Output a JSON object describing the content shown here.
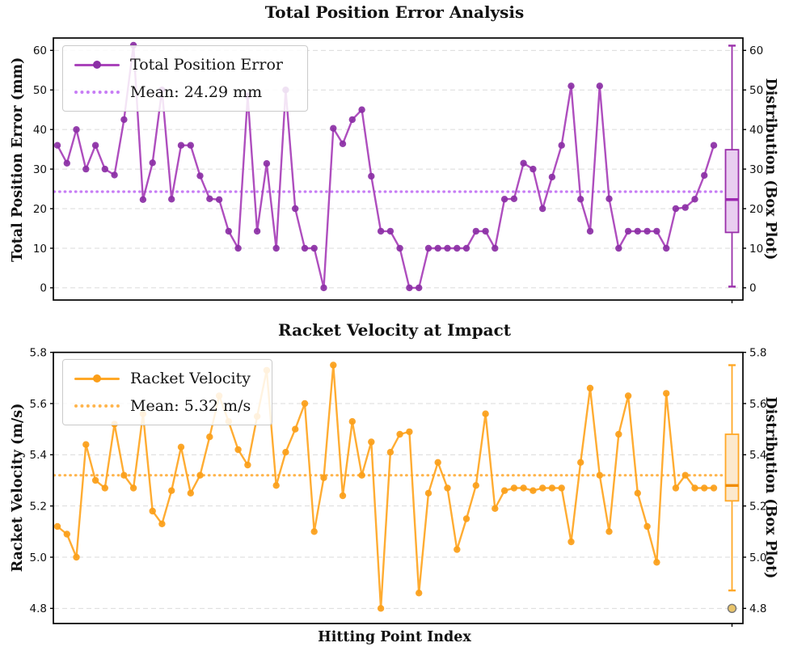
{
  "page": {
    "background": "#ffffff"
  },
  "chart_data": [
    {
      "type": "line",
      "title": "Total Position Error Analysis",
      "ylabel": "Total Position Error (mm)",
      "ylabel_right": "Distribution (Box Plot)",
      "legend": {
        "series_label": "Total Position Error",
        "mean_label": "Mean: 24.29 mm"
      },
      "mean": 24.29,
      "x": "hitting point index 0-69",
      "values": [
        36,
        31.5,
        40,
        30,
        36,
        30,
        28.5,
        42.5,
        61.3,
        22.3,
        31.6,
        50,
        22.4,
        36,
        36,
        28.3,
        22.5,
        22.3,
        14.3,
        10,
        48.5,
        14.3,
        31.4,
        10,
        50,
        20,
        10,
        10,
        0,
        40.3,
        36.4,
        42.5,
        45,
        28.2,
        14.3,
        14.3,
        10,
        0,
        0,
        10,
        10,
        10,
        10,
        10,
        14.3,
        14.3,
        10,
        22.4,
        22.5,
        31.5,
        30,
        20,
        28,
        36,
        51,
        22.4,
        14.3,
        51,
        22.5,
        10,
        14.3,
        14.3,
        14.3,
        14.3,
        10,
        20,
        20.3,
        22.4,
        28.4,
        36
      ],
      "yticks": [
        0,
        10,
        20,
        30,
        40,
        50,
        60
      ],
      "ylim": [
        -3.09,
        63.13
      ],
      "grid": true,
      "legend_position": "upper left",
      "boxplot": {
        "q1": 14.0,
        "median": 22.3,
        "q3": 34.9,
        "whisker_low": 0.3,
        "whisker_high": 61.2,
        "outliers": []
      },
      "colors": {
        "line": "#AA44BB",
        "marker": "#8B2FA5",
        "mean": "#C77DF5",
        "box_edge": "#9A30AA",
        "box_fill": "#E9CEF0",
        "median": "#9C27B0"
      }
    },
    {
      "type": "line",
      "title": "Racket Velocity at Impact",
      "xlabel": "Hitting Point Index",
      "ylabel": "Racket Velocity (m/s)",
      "ylabel_right": "Distribution (Box Plot)",
      "legend": {
        "series_label": "Racket Velocity",
        "mean_label": "Mean: 5.32 m/s"
      },
      "mean": 5.32,
      "x": "hitting point index 0-69",
      "values": [
        5.12,
        5.09,
        5.0,
        5.44,
        5.3,
        5.27,
        5.52,
        5.32,
        5.27,
        5.56,
        5.18,
        5.13,
        5.26,
        5.43,
        5.25,
        5.32,
        5.47,
        5.63,
        5.53,
        5.42,
        5.36,
        5.55,
        5.73,
        5.28,
        5.41,
        5.5,
        5.6,
        5.1,
        5.31,
        5.75,
        5.24,
        5.53,
        5.32,
        5.45,
        4.8,
        5.41,
        5.48,
        5.49,
        4.86,
        5.25,
        5.37,
        5.27,
        5.03,
        5.15,
        5.28,
        5.56,
        5.19,
        5.26,
        5.27,
        5.27,
        5.26,
        5.27,
        5.27,
        5.27,
        5.06,
        5.37,
        5.66,
        5.32,
        5.1,
        5.48,
        5.63,
        5.25,
        5.12,
        4.98,
        5.64,
        5.27,
        5.32,
        5.27,
        5.27,
        5.27
      ],
      "yticks": [
        4.8,
        5.0,
        5.2,
        5.4,
        5.6,
        5.8
      ],
      "ylim": [
        4.741,
        5.8
      ],
      "grid": true,
      "legend_position": "upper left",
      "boxplot": {
        "q1": 5.22,
        "median": 5.28,
        "q3": 5.48,
        "whisker_low": 4.87,
        "whisker_high": 5.75,
        "outliers": [
          4.8
        ]
      },
      "colors": {
        "line": "#FFA827",
        "marker": "#FB9E18",
        "mean": "#FFB54D",
        "box_edge": "#FFA827",
        "box_fill": "#FCE9CD",
        "median": "#F08C00",
        "outlier_fill": "#E9C46B",
        "outlier_edge": "#777777"
      }
    }
  ]
}
